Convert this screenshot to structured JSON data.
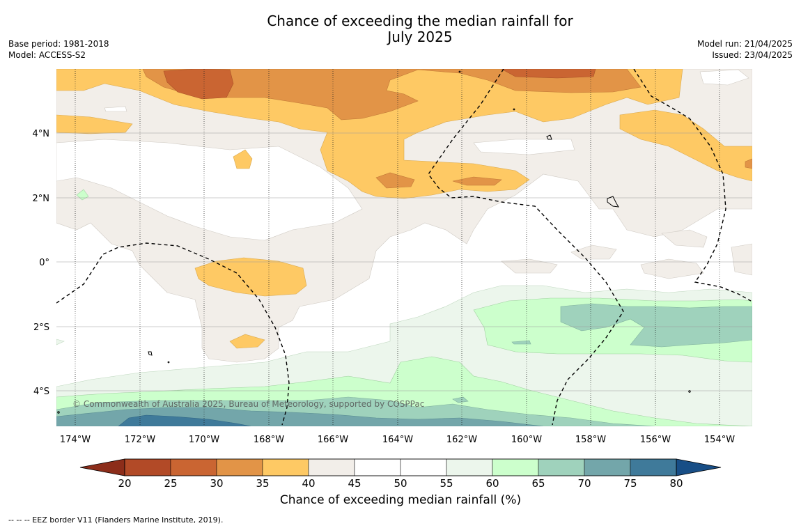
{
  "title_line1": "Chance of exceeding the median rainfall for",
  "title_line2": "July 2025",
  "base_period": "Base period: 1981-2018",
  "model": "Model: ACCESS-S2",
  "model_run": "Model run: 21/04/2025",
  "issued": "Issued: 23/04/2025",
  "copyright": "© Commonwealth of Australia 2025, Bureau of Meteorology, supported by COSPPac",
  "footnote": "-- -- -- EEZ border V11 (Flanders Marine Institute, 2019).",
  "map": {
    "lon_labels": [
      "174°W",
      "172°W",
      "170°W",
      "168°W",
      "166°W",
      "164°W",
      "162°W",
      "160°W",
      "158°W",
      "156°W",
      "154°W"
    ],
    "lon_values": [
      -174,
      -172,
      -170,
      -168,
      -166,
      -164,
      -162,
      -160,
      -158,
      -156,
      -154
    ],
    "lat_labels": [
      "4°N",
      "2°N",
      "0°",
      "2°S",
      "4°S"
    ],
    "lat_values": [
      4,
      2,
      0,
      -2,
      -4
    ],
    "extent": {
      "lon_min": -174.6,
      "lon_max": -153.0,
      "lat_min": -5.2,
      "lat_max": 5.9
    }
  },
  "colorbar": {
    "label": "Chance of exceeding median rainfall (%)",
    "ticks": [
      "20",
      "25",
      "30",
      "35",
      "40",
      "45",
      "50",
      "55",
      "60",
      "65",
      "70",
      "75",
      "80"
    ],
    "under_color": "#8c2d1a",
    "over_color": "#184e86",
    "colors": [
      "#b24a27",
      "#ca6532",
      "#e29447",
      "#fec964",
      "#f2eee9",
      "#ffffff",
      "#ffffff",
      "#ecf6ec",
      "#ccffcc",
      "#9fd2bc",
      "#73a6aa",
      "#3f7a9a"
    ]
  },
  "colors": {
    "brown_dark": "#ca6532",
    "orange": "#e29447",
    "yellow": "#fec964",
    "beige": "#f2eee9",
    "pale_green": "#ecf6ec",
    "light_green": "#ccffcc",
    "teal_light": "#9fd2bc",
    "teal": "#73a6aa",
    "blue": "#3f7a9a"
  }
}
